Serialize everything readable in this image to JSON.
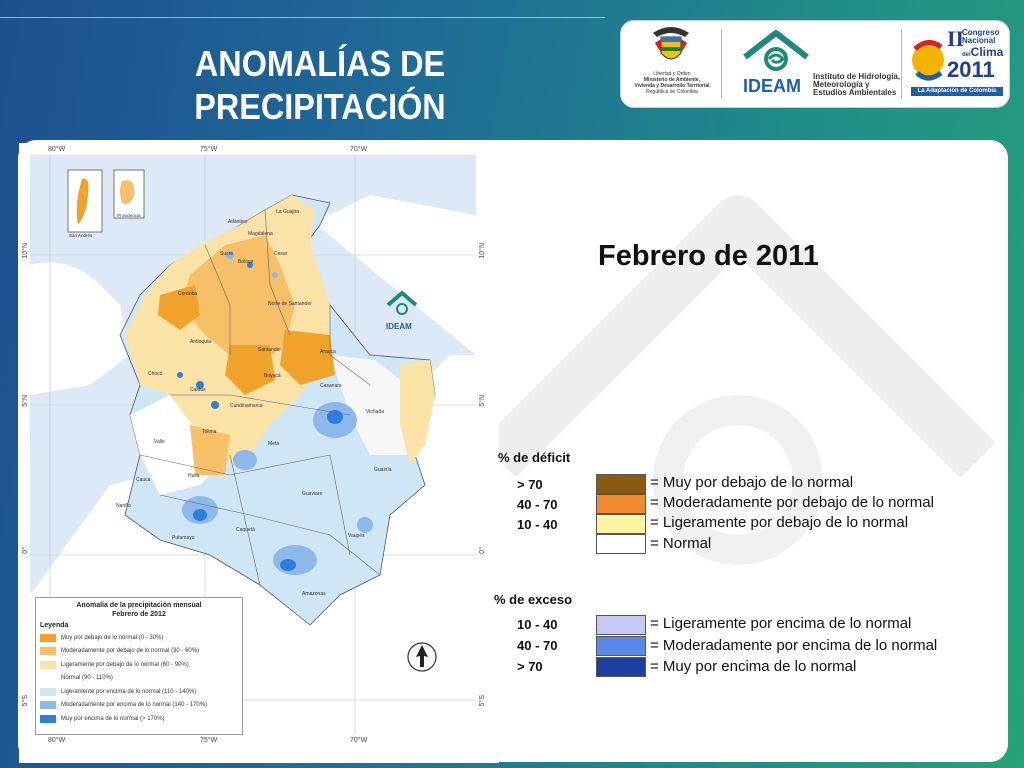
{
  "header": {
    "title_line1": "ANOMALÍAS DE",
    "title_line2": "PRECIPITACIÓN"
  },
  "logos": {
    "ministry_lines": [
      "Libertad y Orden",
      "Ministerio de Ambiente,",
      "Vivienda y Desarrollo Territorial",
      "República de Colombia"
    ],
    "ideam_name": "IDEAM",
    "ideam_full": [
      "Instituto de Hidrología,",
      "Meteorología y",
      "Estudios Ambientales"
    ],
    "congress_roman": "II",
    "congress_word1": "Congreso",
    "congress_word2": "Nacional",
    "congress_word3": "Clima",
    "congress_small": "del",
    "congress_year": "2011",
    "congress_tagline": "La Adaptación de Colombia",
    "map_logo_text": "IDEAM"
  },
  "map": {
    "top_lon": [
      "80°W",
      "75°W",
      "70°W"
    ],
    "bottom_lon": [
      "80°W",
      "75°W",
      "70°W"
    ],
    "left_lat": [
      "10°N",
      "5°N",
      "0°",
      "5°S"
    ],
    "right_lat": [
      "10°N",
      "5°N",
      "0°",
      "5°S"
    ],
    "inset_labels": [
      "San Andrés",
      "Providencia"
    ],
    "dept_labels": [
      "La Guajira",
      "Magdalena",
      "Atlántico",
      "Cesar",
      "Sucre",
      "Bolívar",
      "Córdoba",
      "Norte de Santander",
      "Antioquia",
      "Santander",
      "Arauca",
      "Boyacá",
      "Casanare",
      "Chocó",
      "Caldas",
      "Cundinamarca",
      "Vichada",
      "Meta",
      "Tolima",
      "Valle",
      "Guainía",
      "Huila",
      "Cauca",
      "Guaviare",
      "Nariño",
      "Caquetá",
      "Putumayo",
      "Vaupés",
      "Amazonas"
    ],
    "legend": {
      "title_line1": "Anomalía de la precipitación mensual",
      "title_line2": "Febrero de 2012",
      "subtitle": "Leyenda",
      "items": [
        {
          "label": "Muy por debajo de lo normal (0 - 30%)",
          "color": "#f0a22a"
        },
        {
          "label": "Moderadamente por debajo de lo normal (30 - 60%)",
          "color": "#f7c068"
        },
        {
          "label": "Ligeramente por debajo de lo normal (60 - 90%)",
          "color": "#fbe3a8"
        },
        {
          "label": "Normal (90 - 110%)",
          "color": "#ffffff"
        },
        {
          "label": "Ligeramente por encima de lo normal (110 - 140%)",
          "color": "#cfe6f6"
        },
        {
          "label": "Moderadamente por encima de lo normal (140 - 170%)",
          "color": "#8db8ea"
        },
        {
          "label": "Muy por encima de lo normal (> 170%)",
          "color": "#2d7ee0"
        }
      ]
    }
  },
  "right_panel": {
    "date_title": "Febrero de 2011",
    "deficit_label": "% de déficit",
    "deficit": [
      {
        "range": "> 70",
        "text": "= Muy por debajo de lo normal",
        "color": "#8a5a0e"
      },
      {
        "range": "40 -  70",
        "text": "= Moderadamente por debajo de lo normal",
        "color": "#f08a2c"
      },
      {
        "range": "10 -  40",
        "text": "= Ligeramente por debajo de lo normal",
        "color": "#faf3a0"
      },
      {
        "range": "",
        "text": "= Normal",
        "color": "#ffffff"
      }
    ],
    "excess_label": "% de exceso",
    "excess": [
      {
        "range": "10 -  40",
        "text": "= Ligeramente por encima de lo normal",
        "color": "#c8c8f5"
      },
      {
        "range": "40 -  70",
        "text": "= Moderadamente por encima de lo normal",
        "color": "#5a88e8"
      },
      {
        "range": "> 70",
        "text": "= Muy por encima de lo normal",
        "color": "#1f3f9e"
      }
    ]
  }
}
